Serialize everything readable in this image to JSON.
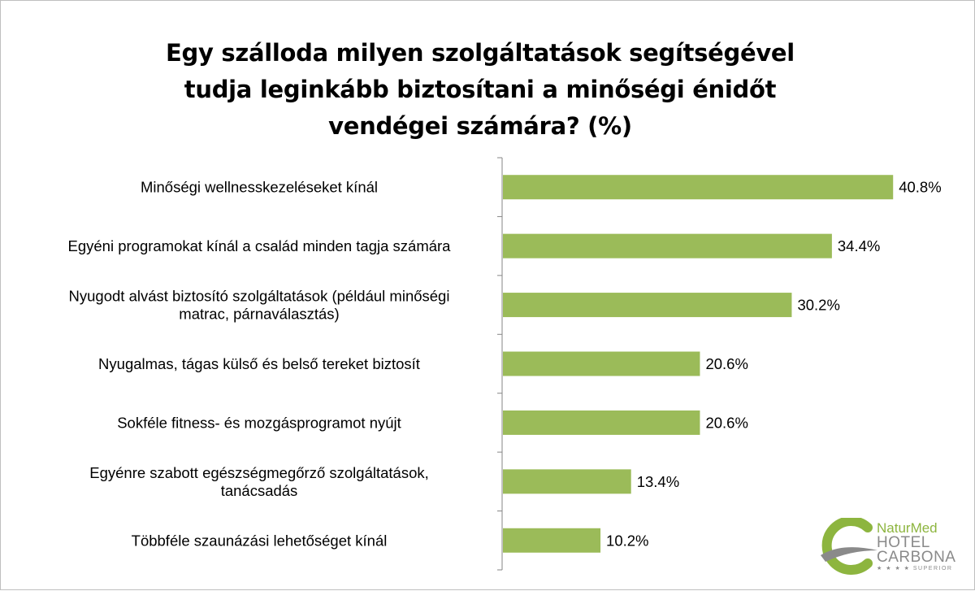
{
  "chart_data": {
    "type": "bar",
    "orientation": "horizontal",
    "title_lines": [
      "Egy szálloda milyen szolgáltatások segítségével",
      "tudja leginkább biztosítani a minőségi énidőt",
      "vendégei számára? (%)"
    ],
    "categories": [
      "Minőségi wellnesskezeléseket kínál",
      "Egyéni programokat kínál a család minden tagja számára",
      "Nyugodt alvást biztosító szolgáltatások (például minőségi matrac, párnaválasztás)",
      "Nyugalmas, tágas külső és belső tereket biztosít",
      "Sokféle fitness- és mozgásprogramot nyújt",
      "Egyénre szabott egészségmegőrző szolgáltatások, tanácsadás",
      "Többféle szaunázási lehetőséget kínál"
    ],
    "category_lines": [
      [
        "Minőségi wellnesskezeléseket kínál"
      ],
      [
        "Egyéni programokat kínál a család minden tagja számára"
      ],
      [
        "Nyugodt alvást biztosító szolgáltatások (például minőségi",
        "matrac, párnaválasztás)"
      ],
      [
        "Nyugalmas, tágas külső és belső tereket biztosít"
      ],
      [
        "Sokféle fitness- és mozgásprogramot nyújt"
      ],
      [
        "Egyénre szabott egészségmegőrző szolgáltatások,",
        "tanácsadás"
      ],
      [
        "Többféle szaunázási lehetőséget kínál"
      ]
    ],
    "values": [
      40.8,
      34.4,
      30.2,
      20.6,
      20.6,
      13.4,
      10.2
    ],
    "value_labels": [
      "40.8%",
      "34.4%",
      "30.2%",
      "20.6%",
      "20.6%",
      "13.4%",
      "10.2%"
    ],
    "xlim": [
      0,
      50
    ],
    "grid": false,
    "legend": false,
    "colors": {
      "bar": "#9bbb59",
      "axis": "#868686"
    }
  },
  "logo": {
    "line1": "NaturMed",
    "line2": "HOTEL",
    "line3": "CARBONA",
    "line4": "★ ★ ★ ★ SUPERIOR",
    "colors": {
      "green": "#8db53f",
      "gray": "#8a8a8a"
    }
  }
}
